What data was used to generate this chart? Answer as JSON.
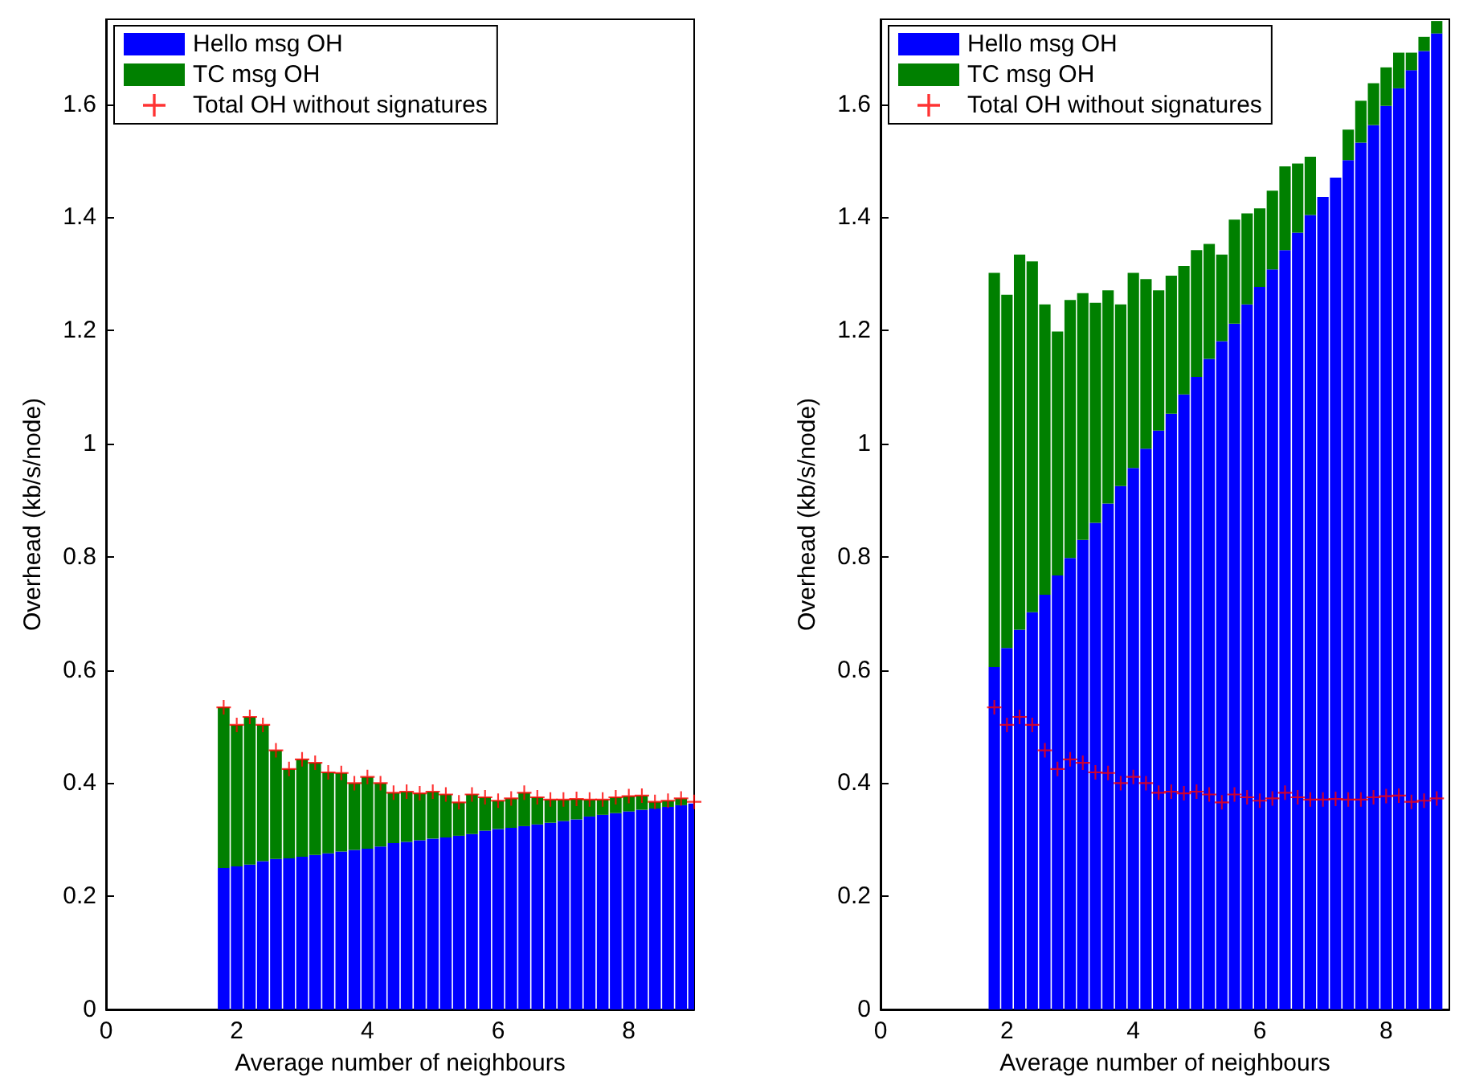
{
  "chart_data": [
    {
      "type": "bar",
      "stacked": true,
      "xlabel": "Average number of neighbours",
      "ylabel": "Overhead (kb/s/node)",
      "xlim": [
        0,
        9
      ],
      "xticks": [
        0,
        2,
        4,
        6,
        8
      ],
      "ylim": [
        0,
        1.75
      ],
      "yticks": [
        0,
        0.2,
        0.4,
        0.6,
        0.8,
        1,
        1.2,
        1.4,
        1.6
      ],
      "grid": false,
      "legend": "top left",
      "x": [
        1.8,
        2,
        2.2,
        2.4,
        2.6,
        2.8,
        3,
        3.2,
        3.4,
        3.6,
        3.8,
        4,
        4.2,
        4.4,
        4.6,
        4.8,
        5,
        5.2,
        5.4,
        5.6,
        5.8,
        6,
        6.2,
        6.4,
        6.6,
        6.8,
        7,
        7.2,
        7.4,
        7.6,
        7.8,
        8,
        8.2,
        8.4,
        8.6,
        8.8,
        9
      ],
      "series": [
        {
          "name": "Hello msg OH",
          "color": "#0000ff",
          "values": [
            0.25,
            0.253,
            0.256,
            0.262,
            0.266,
            0.267,
            0.27,
            0.273,
            0.276,
            0.279,
            0.282,
            0.284,
            0.288,
            0.294,
            0.296,
            0.299,
            0.302,
            0.304,
            0.307,
            0.31,
            0.316,
            0.319,
            0.321,
            0.324,
            0.327,
            0.33,
            0.333,
            0.336,
            0.341,
            0.344,
            0.347,
            0.35,
            0.353,
            0.355,
            0.358,
            0.361,
            0.364
          ]
        },
        {
          "name": "TC msg OH",
          "color": "#008000",
          "values": [
            0.284,
            0.25,
            0.261,
            0.241,
            0.192,
            0.158,
            0.172,
            0.163,
            0.143,
            0.139,
            0.118,
            0.127,
            0.112,
            0.089,
            0.089,
            0.083,
            0.083,
            0.076,
            0.059,
            0.07,
            0.059,
            0.05,
            0.052,
            0.059,
            0.048,
            0.041,
            0.038,
            0.036,
            0.03,
            0.027,
            0.028,
            0.027,
            0.025,
            0.012,
            0.011,
            0.012,
            null
          ]
        },
        {
          "type": "scatter",
          "name": "Total OH without signatures",
          "color": "#ff0000",
          "marker": "cross",
          "values": [
            0.534,
            0.503,
            0.517,
            0.503,
            0.458,
            0.425,
            0.442,
            0.436,
            0.419,
            0.418,
            0.4,
            0.411,
            0.4,
            0.383,
            0.385,
            0.382,
            0.385,
            0.38,
            0.366,
            0.38,
            0.375,
            0.369,
            0.373,
            0.383,
            0.375,
            0.371,
            0.371,
            0.372,
            0.371,
            0.371,
            0.375,
            0.377,
            0.378,
            0.367,
            0.369,
            0.373,
            0.367
          ]
        }
      ]
    },
    {
      "type": "bar",
      "stacked": true,
      "xlabel": "Average number of neighbours",
      "ylabel": "Overhead (kb/s/node)",
      "xlim": [
        0,
        9
      ],
      "xticks": [
        0,
        2,
        4,
        6,
        8
      ],
      "ylim": [
        0,
        1.75
      ],
      "yticks": [
        0,
        0.2,
        0.4,
        0.6,
        0.8,
        1,
        1.2,
        1.4,
        1.6
      ],
      "grid": false,
      "legend": "top left",
      "x": [
        1.8,
        2,
        2.2,
        2.4,
        2.6,
        2.8,
        3,
        3.2,
        3.4,
        3.6,
        3.8,
        4,
        4.2,
        4.4,
        4.6,
        4.8,
        5,
        5.2,
        5.4,
        5.6,
        5.8,
        6,
        6.2,
        6.4,
        6.6,
        6.8,
        7,
        7.2,
        7.4,
        7.6,
        7.8,
        8,
        8.2,
        8.4,
        8.6,
        8.8
      ],
      "series": [
        {
          "name": "Hello msg OH",
          "color": "#0000ff",
          "values": [
            0.605,
            0.639,
            0.671,
            0.702,
            0.733,
            0.767,
            0.798,
            0.83,
            0.86,
            0.894,
            0.925,
            0.957,
            0.991,
            1.023,
            1.053,
            1.087,
            1.118,
            1.15,
            1.181,
            1.212,
            1.246,
            1.277,
            1.308,
            1.342,
            1.373,
            1.404,
            1.436,
            1.47,
            1.501,
            1.532,
            1.563,
            1.597,
            1.628,
            1.66,
            1.694,
            1.725
          ]
        },
        {
          "name": "TC msg OH",
          "color": "#008000",
          "values": [
            0.697,
            0.624,
            0.663,
            0.62,
            0.513,
            0.431,
            0.456,
            0.436,
            0.389,
            0.377,
            0.321,
            0.345,
            0.3,
            0.248,
            0.244,
            0.227,
            0.224,
            0.203,
            0.153,
            0.184,
            0.161,
            0.139,
            0.139,
            0.148,
            0.122,
            0.103,
            null,
            null,
            0.054,
            0.074,
            0.074,
            0.068,
            0.063,
            0.031,
            0.025,
            0.022
          ]
        },
        {
          "type": "scatter",
          "name": "Total OH without signatures",
          "color": "#ff0000",
          "marker": "cross",
          "values": [
            0.534,
            0.503,
            0.517,
            0.503,
            0.458,
            0.425,
            0.442,
            0.436,
            0.419,
            0.418,
            0.4,
            0.411,
            0.4,
            0.383,
            0.385,
            0.382,
            0.385,
            0.38,
            0.366,
            0.38,
            0.375,
            0.369,
            0.373,
            0.383,
            0.375,
            0.371,
            0.371,
            0.372,
            0.371,
            0.371,
            0.375,
            0.377,
            0.378,
            0.367,
            0.369,
            0.373
          ]
        }
      ]
    }
  ]
}
